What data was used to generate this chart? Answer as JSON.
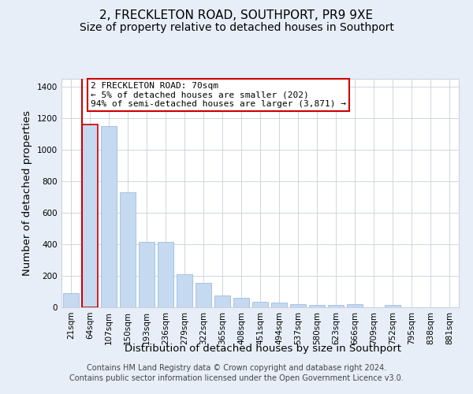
{
  "title": "2, FRECKLETON ROAD, SOUTHPORT, PR9 9XE",
  "subtitle": "Size of property relative to detached houses in Southport",
  "xlabel": "Distribution of detached houses by size in Southport",
  "ylabel": "Number of detached properties",
  "footer_line1": "Contains HM Land Registry data © Crown copyright and database right 2024.",
  "footer_line2": "Contains public sector information licensed under the Open Government Licence v3.0.",
  "categories": [
    "21sqm",
    "64sqm",
    "107sqm",
    "150sqm",
    "193sqm",
    "236sqm",
    "279sqm",
    "322sqm",
    "365sqm",
    "408sqm",
    "451sqm",
    "494sqm",
    "537sqm",
    "580sqm",
    "623sqm",
    "666sqm",
    "709sqm",
    "752sqm",
    "795sqm",
    "838sqm",
    "881sqm"
  ],
  "values": [
    90,
    1160,
    1150,
    730,
    415,
    415,
    210,
    155,
    75,
    60,
    35,
    30,
    20,
    15,
    15,
    20,
    0,
    15,
    0,
    0,
    0
  ],
  "bar_color": "#c5d9f1",
  "bar_edge_color": "#8fb4d9",
  "highlight_index": 1,
  "highlight_bar_edge_color": "#cc0000",
  "vline_color": "#cc0000",
  "vline_index": 1,
  "annotation_text": "2 FRECKLETON ROAD: 70sqm\n← 5% of detached houses are smaller (202)\n94% of semi-detached houses are larger (3,871) →",
  "annotation_box_edge_color": "#cc0000",
  "annotation_box_face_color": "#ffffff",
  "ylim": [
    0,
    1450
  ],
  "yticks": [
    0,
    200,
    400,
    600,
    800,
    1000,
    1200,
    1400
  ],
  "bg_color": "#e8eef8",
  "plot_bg_color": "#ffffff",
  "grid_color": "#c8d0dc",
  "title_fontsize": 11,
  "subtitle_fontsize": 10,
  "axis_label_fontsize": 9.5,
  "tick_fontsize": 7.5,
  "annotation_fontsize": 8,
  "footer_fontsize": 7
}
